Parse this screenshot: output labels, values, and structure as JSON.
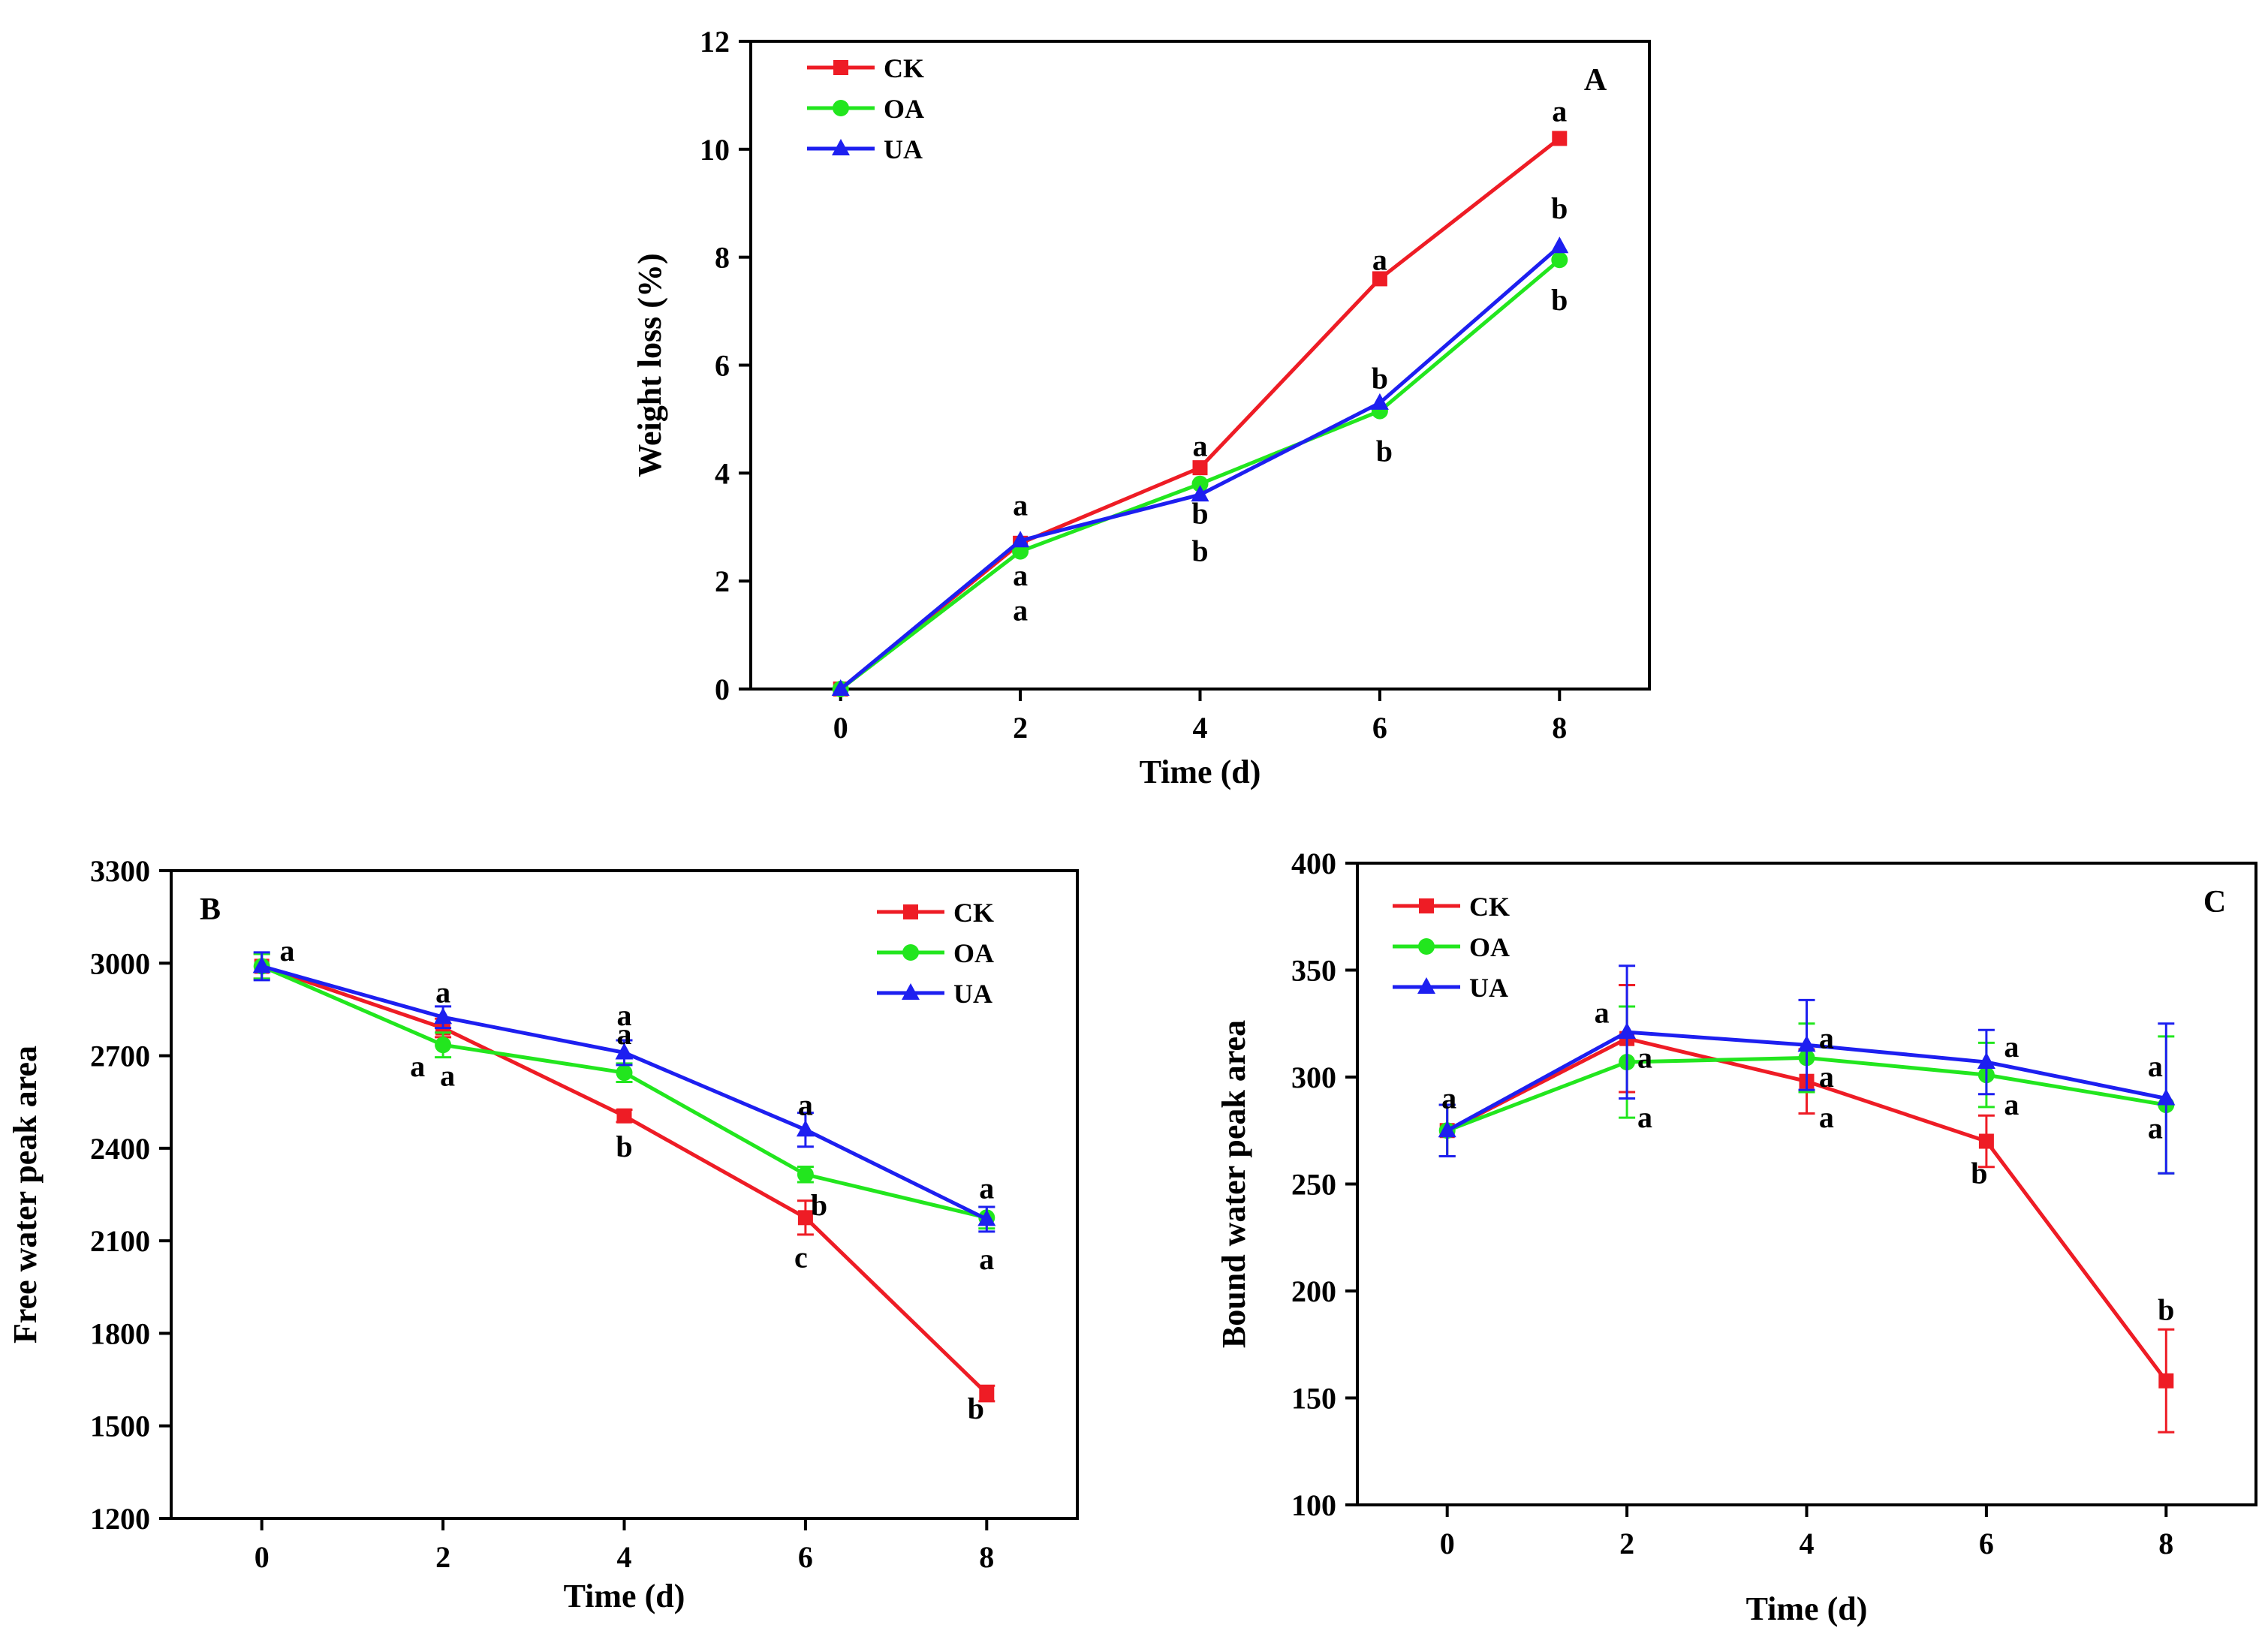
{
  "colors": {
    "CK": "#ee1c25",
    "OA": "#22e61e",
    "UA": "#1d1ff0",
    "axis": "#000000"
  },
  "chart_data": [
    {
      "id": "A",
      "type": "line",
      "panel_label": "A",
      "xlabel": "Time (d)",
      "ylabel": "Weight loss (%)",
      "xlim": [
        -1,
        9
      ],
      "ylim": [
        0,
        12
      ],
      "xticks": [
        0,
        2,
        4,
        6,
        8
      ],
      "yticks": [
        0,
        2,
        4,
        6,
        8,
        10,
        12
      ],
      "x": [
        0,
        2,
        4,
        6,
        8
      ],
      "series": [
        {
          "name": "CK",
          "marker": "square",
          "values": [
            0,
            2.7,
            4.1,
            7.6,
            10.2
          ]
        },
        {
          "name": "OA",
          "marker": "circle",
          "values": [
            0,
            2.55,
            3.8,
            5.15,
            7.95
          ]
        },
        {
          "name": "UA",
          "marker": "triangle",
          "values": [
            0,
            2.75,
            3.6,
            5.3,
            8.2
          ]
        }
      ],
      "annotations": [
        {
          "x": 2,
          "y": 3.4,
          "text": "a"
        },
        {
          "x": 2,
          "y": 2.1,
          "text": "a"
        },
        {
          "x": 2,
          "y": 1.45,
          "text": "a"
        },
        {
          "x": 4,
          "y": 4.5,
          "text": "a"
        },
        {
          "x": 4,
          "y": 3.25,
          "text": "b"
        },
        {
          "x": 4,
          "y": 2.55,
          "text": "b"
        },
        {
          "x": 6,
          "y": 7.95,
          "text": "a"
        },
        {
          "x": 6,
          "y": 5.75,
          "text": "b"
        },
        {
          "x": 6.05,
          "y": 4.4,
          "text": "b"
        },
        {
          "x": 8,
          "y": 10.7,
          "text": "a"
        },
        {
          "x": 8,
          "y": 8.9,
          "text": "b"
        },
        {
          "x": 8,
          "y": 7.2,
          "text": "b"
        }
      ]
    },
    {
      "id": "B",
      "type": "line",
      "panel_label": "B",
      "xlabel": "Time (d)",
      "ylabel": "Free water peak area",
      "xlim": [
        -1,
        9
      ],
      "ylim": [
        1200,
        3300
      ],
      "xticks": [
        0,
        2,
        4,
        6,
        8
      ],
      "yticks": [
        1200,
        1500,
        1800,
        2100,
        2400,
        2700,
        3000,
        3300
      ],
      "x": [
        0,
        2,
        4,
        6,
        8
      ],
      "series": [
        {
          "name": "CK",
          "marker": "square",
          "values": [
            2990,
            2790,
            2505,
            2175,
            1605
          ],
          "errors": [
            40,
            30,
            20,
            55,
            25
          ]
        },
        {
          "name": "OA",
          "marker": "circle",
          "values": [
            2990,
            2735,
            2645,
            2315,
            2175
          ],
          "errors": [
            40,
            40,
            30,
            25,
            35
          ]
        },
        {
          "name": "UA",
          "marker": "triangle",
          "values": [
            2990,
            2825,
            2710,
            2460,
            2170
          ],
          "errors": [
            45,
            35,
            40,
            55,
            40
          ]
        }
      ],
      "annotations": [
        {
          "x": 0.28,
          "y": 3040,
          "text": "a"
        },
        {
          "x": 2,
          "y": 2905,
          "text": "a"
        },
        {
          "x": 1.72,
          "y": 2665,
          "text": "a"
        },
        {
          "x": 2.05,
          "y": 2635,
          "text": "a"
        },
        {
          "x": 4,
          "y": 2830,
          "text": "a"
        },
        {
          "x": 4,
          "y": 2770,
          "text": "a"
        },
        {
          "x": 4,
          "y": 2405,
          "text": "b"
        },
        {
          "x": 6,
          "y": 2540,
          "text": "a"
        },
        {
          "x": 6.15,
          "y": 2215,
          "text": "b"
        },
        {
          "x": 5.95,
          "y": 2045,
          "text": "c"
        },
        {
          "x": 8,
          "y": 2270,
          "text": "a"
        },
        {
          "x": 8,
          "y": 2040,
          "text": "a"
        },
        {
          "x": 7.88,
          "y": 1555,
          "text": "b"
        }
      ]
    },
    {
      "id": "C",
      "type": "line",
      "panel_label": "C",
      "xlabel": "Time (d)",
      "ylabel": "Bound water peak area",
      "xlim": [
        -1,
        9
      ],
      "ylim": [
        100,
        400
      ],
      "xticks": [
        0,
        2,
        4,
        6,
        8
      ],
      "yticks": [
        100,
        150,
        200,
        250,
        300,
        350,
        400
      ],
      "x": [
        0,
        2,
        4,
        6,
        8
      ],
      "series": [
        {
          "name": "CK",
          "marker": "square",
          "values": [
            275,
            318,
            298,
            270,
            158
          ],
          "errors": [
            12,
            25,
            15,
            12,
            24
          ]
        },
        {
          "name": "OA",
          "marker": "circle",
          "values": [
            275,
            307,
            309,
            301,
            287
          ],
          "errors": [
            12,
            26,
            16,
            15,
            32
          ]
        },
        {
          "name": "UA",
          "marker": "triangle",
          "values": [
            275,
            321,
            315,
            307,
            290
          ],
          "errors": [
            12,
            31,
            21,
            15,
            35
          ]
        }
      ],
      "annotations": [
        {
          "x": 0.02,
          "y": 290,
          "text": "a"
        },
        {
          "x": 1.72,
          "y": 330,
          "text": "a"
        },
        {
          "x": 2.2,
          "y": 309,
          "text": "a"
        },
        {
          "x": 2.2,
          "y": 281,
          "text": "a"
        },
        {
          "x": 4.22,
          "y": 318,
          "text": "a"
        },
        {
          "x": 4.22,
          "y": 300,
          "text": "a"
        },
        {
          "x": 4.22,
          "y": 281,
          "text": "a"
        },
        {
          "x": 6.28,
          "y": 314,
          "text": "a"
        },
        {
          "x": 6.28,
          "y": 287,
          "text": "a"
        },
        {
          "x": 5.92,
          "y": 255,
          "text": "b"
        },
        {
          "x": 7.88,
          "y": 305,
          "text": "a"
        },
        {
          "x": 7.88,
          "y": 276,
          "text": "a"
        },
        {
          "x": 8,
          "y": 191,
          "text": "b"
        }
      ]
    }
  ]
}
